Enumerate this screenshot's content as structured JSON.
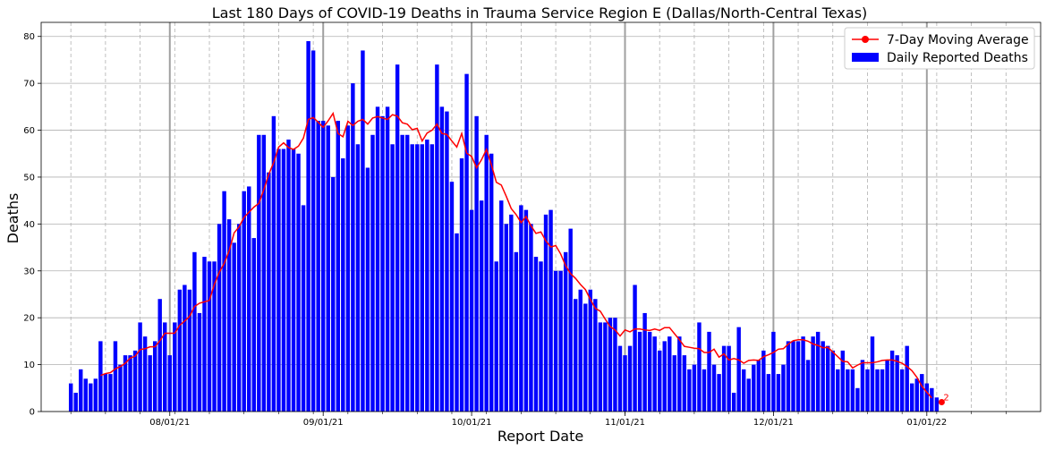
{
  "chart_data": {
    "type": "bar",
    "title": "Last 180 Days of COVID-19 Deaths in Trauma Service Region E (Dallas/North-Central Texas)",
    "xlabel": "Report Date",
    "ylabel": "Deaths",
    "ylim": [
      0,
      83
    ],
    "yticks": [
      0,
      10,
      20,
      30,
      40,
      50,
      60,
      70,
      80
    ],
    "xlim": [
      "2021-07-06",
      "2022-01-24"
    ],
    "xtick_labels": [
      "08/01/21",
      "09/01/21",
      "10/01/21",
      "11/01/21",
      "12/01/21",
      "01/01/22"
    ],
    "xtick_dates": [
      "2021-08-01",
      "2021-09-01",
      "2021-10-01",
      "2021-11-01",
      "2021-12-01",
      "2022-01-01"
    ],
    "grid": true,
    "legend": "top-right",
    "start_date": "2021-07-12",
    "series": [
      {
        "name": "Daily Reported Deaths",
        "kind": "bar",
        "color": "#0000ff",
        "values": [
          6,
          4,
          9,
          7,
          6,
          7,
          15,
          8,
          8,
          15,
          10,
          12,
          12,
          13,
          19,
          16,
          12,
          15,
          24,
          19,
          12,
          19,
          26,
          27,
          26,
          34,
          21,
          33,
          32,
          32,
          40,
          47,
          41,
          36,
          40,
          47,
          48,
          37,
          59,
          59,
          51,
          63,
          56,
          56,
          58,
          56,
          55,
          44,
          79,
          77,
          62,
          62,
          61,
          50,
          62,
          54,
          61,
          70,
          57,
          77,
          52,
          59,
          65,
          63,
          65,
          57,
          74,
          59,
          59,
          57,
          57,
          57,
          58,
          57,
          74,
          65,
          64,
          49,
          38,
          54,
          72,
          43,
          63,
          45,
          59,
          55,
          32,
          45,
          40,
          42,
          34,
          44,
          43,
          40,
          33,
          32,
          42,
          43,
          30,
          30,
          34,
          39,
          24,
          26,
          23,
          26,
          24,
          19,
          19,
          20,
          20,
          14,
          12,
          14,
          27,
          17,
          21,
          17,
          16,
          13,
          15,
          16,
          12,
          16,
          12,
          9,
          10,
          19,
          9,
          17,
          10,
          8,
          14,
          14,
          4,
          18,
          9,
          7,
          10,
          11,
          13,
          8,
          17,
          8,
          10,
          15,
          15,
          15,
          16,
          11,
          16,
          17,
          15,
          14,
          13,
          9,
          13,
          9,
          9,
          5,
          11,
          9,
          16,
          9,
          9,
          11,
          13,
          12,
          9,
          14,
          6,
          7,
          8,
          6,
          5,
          3,
          0,
          0,
          0
        ]
      },
      {
        "name": "7-Day Moving Average",
        "kind": "line",
        "color": "#ff0000",
        "values": [
          null,
          null,
          null,
          null,
          null,
          null,
          7.7,
          8.1,
          8.3,
          9.1,
          9.6,
          10.3,
          11.4,
          11.8,
          13.2,
          13.4,
          13.8,
          13.8,
          15.1,
          16.7,
          16.7,
          16.7,
          18.4,
          19.3,
          20.3,
          22.4,
          23.1,
          23.4,
          23.7,
          27.1,
          29.7,
          31.6,
          34.3,
          38.1,
          39.4,
          41.4,
          42.5,
          43.6,
          44.4,
          47.3,
          50.6,
          53.1,
          56.4,
          57.3,
          56.3,
          55.9,
          56.6,
          58.3,
          62.3,
          62.7,
          61.7,
          60.6,
          62.0,
          63.6,
          59.3,
          58.6,
          61.9,
          61.0,
          61.9,
          62.3,
          61.3,
          62.6,
          62.9,
          62.6,
          62.3,
          63.3,
          63.0,
          61.6,
          61.3,
          60.1,
          60.4,
          57.7,
          59.4,
          60.0,
          61.3,
          59.3,
          59.1,
          57.7,
          56.4,
          59.3,
          55.1,
          54.4,
          52.0,
          53.7,
          55.9,
          52.6,
          48.9,
          48.3,
          45.9,
          43.3,
          42.0,
          40.3,
          41.6,
          39.6,
          38.0,
          38.3,
          36.4,
          35.1,
          35.4,
          33.6,
          31.1,
          29.4,
          28.4,
          27.1,
          26.0,
          23.9,
          22.0,
          21.4,
          19.7,
          18.1,
          17.4,
          16.1,
          17.4,
          17.0,
          17.6,
          17.6,
          17.4,
          17.3,
          17.6,
          17.3,
          17.9,
          17.9,
          16.6,
          15.3,
          13.9,
          13.7,
          13.5,
          13.4,
          12.6,
          12.6,
          13.3,
          11.6,
          12.3,
          11.0,
          11.3,
          11.0,
          10.3,
          10.9,
          11.0,
          10.9,
          11.7,
          12.1,
          12.6,
          13.3,
          13.4,
          14.4,
          15.1,
          15.3,
          15.3,
          15.0,
          14.4,
          14.1,
          13.6,
          13.7,
          12.7,
          11.7,
          10.7,
          10.6,
          9.3,
          9.9,
          10.4,
          10.4,
          10.4,
          10.6,
          10.9,
          11.0,
          11.0,
          10.7,
          10.3,
          9.6,
          8.7,
          7.3,
          5.4,
          4.1,
          2.9,
          null,
          null
        ]
      }
    ],
    "annotations": [
      {
        "text": "2",
        "x_index": 176,
        "y": 2
      }
    ]
  }
}
